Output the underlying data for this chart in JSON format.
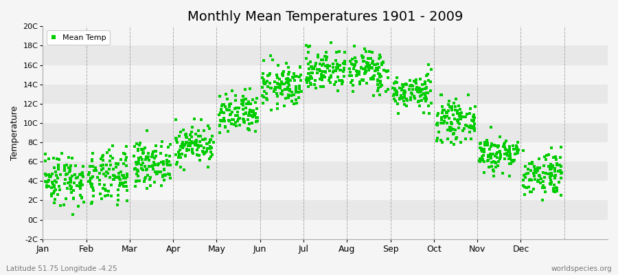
{
  "title": "Monthly Mean Temperatures 1901 - 2009",
  "ylabel": "Temperature",
  "ylim": [
    -2,
    20
  ],
  "yticks": [
    -2,
    0,
    2,
    4,
    6,
    8,
    10,
    12,
    14,
    16,
    18,
    20
  ],
  "ytick_labels": [
    "-2C",
    "0C",
    "2C",
    "4C",
    "6C",
    "8C",
    "10C",
    "12C",
    "14C",
    "16C",
    "18C",
    "20C"
  ],
  "months": [
    "Jan",
    "Feb",
    "Mar",
    "Apr",
    "May",
    "Jun",
    "Jul",
    "Aug",
    "Sep",
    "Oct",
    "Nov",
    "Dec"
  ],
  "mean_temps": [
    4.2,
    4.3,
    5.8,
    7.8,
    10.8,
    13.8,
    15.5,
    15.4,
    13.2,
    10.2,
    6.8,
    4.8
  ],
  "std_temps": [
    1.4,
    1.4,
    1.1,
    1.0,
    1.1,
    1.1,
    1.1,
    1.1,
    0.9,
    1.0,
    1.0,
    1.2
  ],
  "min_temps": [
    -1.5,
    -1.5,
    2.5,
    5.0,
    8.0,
    11.0,
    12.5,
    12.5,
    11.0,
    7.5,
    4.5,
    2.0
  ],
  "max_temps": [
    8.0,
    8.0,
    9.5,
    11.0,
    14.0,
    17.0,
    19.5,
    19.5,
    16.5,
    13.5,
    10.0,
    7.5
  ],
  "dot_color": "#00cc00",
  "background_color": "#f5f5f5",
  "band_light": "#f5f5f5",
  "band_dark": "#e8e8e8",
  "grid_color": "#999999",
  "n_years": 109,
  "footer_left": "Latitude 51.75 Longitude -4.25",
  "footer_right": "worldspecies.org",
  "legend_label": "Mean Temp",
  "title_fontsize": 14,
  "axis_fontsize": 8,
  "xlabel_fontsize": 9,
  "ylabel_fontsize": 9,
  "footer_fontsize": 7.5
}
